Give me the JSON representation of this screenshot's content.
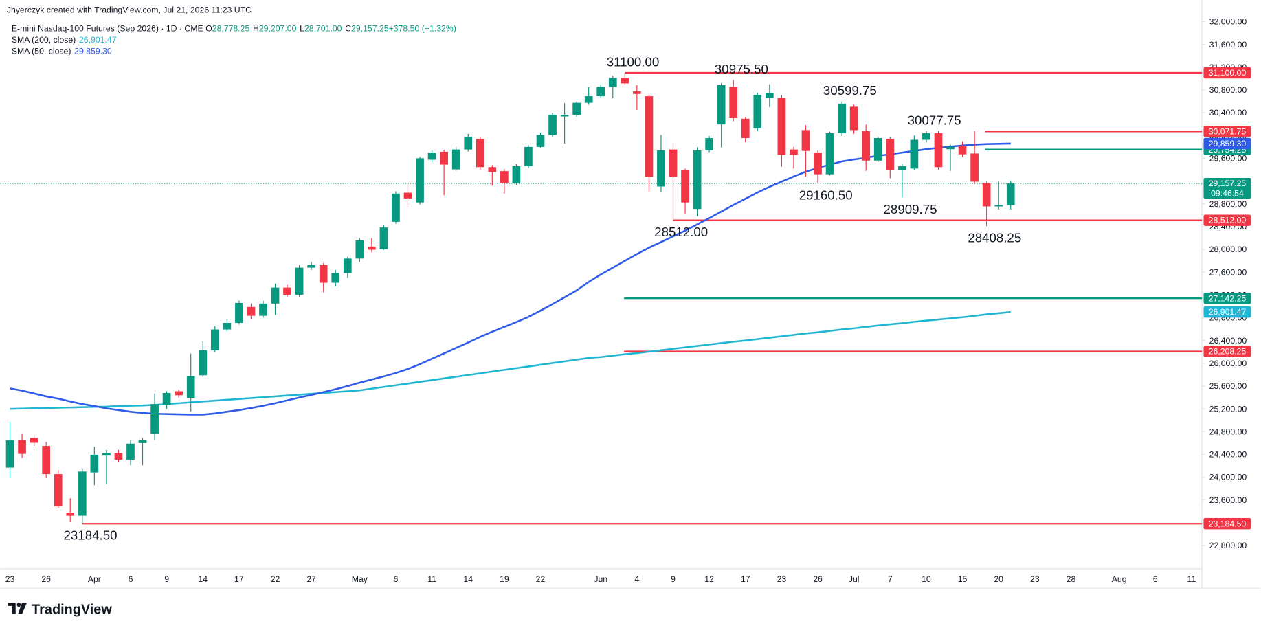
{
  "chart_data": {
    "type": "candlestick",
    "credit": "Jhyerczyk created with TradingView.com, Jul 21, 2026 11:23 UTC",
    "title": "E-mini Nasdaq-100 Futures (Sep 2026) · 1D · CME",
    "ohlc_legend": [
      {
        "key": "O",
        "value": "28,778.25"
      },
      {
        "key": "H",
        "value": "29,207.00"
      },
      {
        "key": "L",
        "value": "28,701.00"
      },
      {
        "key": "C",
        "value": "29,157.25"
      },
      {
        "key": "",
        "value": "+378.50 (+1.32%)"
      }
    ],
    "brand": "TradingView",
    "up_color": "#089981",
    "down_color": "#f23645",
    "categories": [
      "23",
      null,
      null,
      "26",
      null,
      null,
      null,
      "Apr",
      null,
      null,
      "6",
      null,
      null,
      "9",
      null,
      null,
      "14",
      null,
      null,
      "17",
      null,
      null,
      "22",
      null,
      null,
      "27",
      null,
      null,
      null,
      "May",
      null,
      null,
      "6",
      null,
      null,
      "11",
      null,
      null,
      "14",
      null,
      null,
      "19",
      null,
      null,
      "22",
      null,
      null,
      null,
      null,
      "Jun",
      null,
      null,
      "4",
      null,
      null,
      "9",
      null,
      null,
      "12",
      null,
      null,
      "17",
      null,
      null,
      "23",
      null,
      null,
      "26",
      null,
      null,
      "Jul",
      null,
      null,
      "7",
      null,
      null,
      "10",
      null,
      null,
      "15",
      null,
      null,
      "20",
      null,
      null,
      "23",
      null,
      null,
      "28",
      null,
      null,
      null,
      "Aug",
      null,
      null,
      "6",
      null,
      null,
      "11"
    ],
    "open": [
      24170,
      24650,
      24690,
      24550,
      24055,
      23380,
      23325,
      24085,
      24380,
      24425,
      24310,
      24600,
      24760,
      25270,
      25510,
      25395,
      25790,
      26230,
      26595,
      26710,
      26990,
      26835,
      27050,
      27330,
      27205,
      27680,
      27725,
      27415,
      27585,
      27840,
      28050,
      28005,
      28485,
      28995,
      28825,
      29575,
      29715,
      29405,
      29755,
      29940,
      29445,
      29375,
      29165,
      29460,
      29800,
      30010,
      30335,
      30365,
      30575,
      30690,
      30855,
      31010,
      30775,
      30690,
      29105,
      29755,
      29390,
      28710,
      29740,
      30195,
      30855,
      30295,
      30125,
      30660,
      30660,
      29755,
      30095,
      29700,
      29320,
      30040,
      30505,
      30080,
      29560,
      29940,
      29390,
      29420,
      29925,
      30040,
      29760,
      29815,
      29685,
      29165,
      28755,
      28778.25,
      null,
      null,
      null,
      null,
      null,
      null,
      null,
      null,
      null,
      null,
      null,
      null,
      null,
      null,
      null
    ],
    "high": [
      24975,
      24760,
      24750,
      24620,
      24125,
      23630,
      24155,
      24535,
      24480,
      24480,
      24650,
      24690,
      25470,
      25510,
      25540,
      26170,
      26385,
      26650,
      26770,
      27100,
      27050,
      27100,
      27400,
      27380,
      27730,
      27780,
      27760,
      27640,
      27870,
      28200,
      28200,
      28420,
      29020,
      29200,
      29630,
      29740,
      29750,
      29800,
      30030,
      29970,
      29480,
      29410,
      29500,
      29830,
      30050,
      30400,
      30570,
      30600,
      30850,
      30900,
      31050,
      31100,
      30885,
      30720,
      30010,
      29870,
      29420,
      29790,
      29990,
      30920,
      30975.5,
      30320,
      30750,
      30900,
      30710,
      29800,
      30180,
      29740,
      30070,
      30599.75,
      30540,
      30190,
      29980,
      29970,
      29500,
      30000,
      30077.75,
      30080,
      29840,
      29900,
      30080,
      29190,
      29190,
      29207,
      null,
      null,
      null,
      null,
      null,
      null,
      null,
      null,
      null,
      null,
      null,
      null,
      null,
      null,
      null
    ],
    "low": [
      23985,
      24340,
      24550,
      23985,
      23465,
      23210,
      23184.5,
      23860,
      23875,
      24270,
      24210,
      24210,
      24650,
      25200,
      25400,
      25155,
      25760,
      26200,
      26560,
      26680,
      26780,
      26800,
      26850,
      27170,
      27170,
      27640,
      27250,
      27350,
      27500,
      27780,
      27950,
      27990,
      28450,
      28740,
      28790,
      29530,
      28950,
      29380,
      29720,
      29400,
      29120,
      28980,
      29130,
      29430,
      29780,
      29980,
      29860,
      30330,
      30540,
      30660,
      30660,
      30880,
      30450,
      29010,
      29000,
      28512,
      28620,
      28580,
      29710,
      29790,
      30250,
      29880,
      30080,
      30500,
      29450,
      29420,
      29280,
      29160.5,
      29300,
      29990,
      30030,
      29380,
      29530,
      29250,
      28909.75,
      29390,
      29880,
      29400,
      29380,
      29620,
      29150,
      28408.25,
      28700,
      28701,
      null,
      null,
      null,
      null,
      null,
      null,
      null,
      null,
      null,
      null,
      null,
      null,
      null,
      null,
      null
    ],
    "close": [
      24650,
      24410,
      24605,
      24055,
      23490,
      23325,
      24100,
      24395,
      24425,
      24310,
      24590,
      24650,
      25285,
      25480,
      25440,
      25775,
      26230,
      26595,
      26710,
      27060,
      26835,
      27050,
      27330,
      27205,
      27680,
      27725,
      27415,
      27585,
      27840,
      28160,
      27995,
      28385,
      28980,
      28895,
      29600,
      29700,
      29490,
      29755,
      29980,
      29445,
      29360,
      29165,
      29460,
      29800,
      30010,
      30365,
      30365,
      30575,
      30690,
      30855,
      31010,
      30915,
      30730,
      29275,
      29740,
      29275,
      28825,
      29740,
      29955,
      30885,
      30305,
      29955,
      30715,
      30745,
      29660,
      29660,
      29730,
      29320,
      30040,
      30560,
      30095,
      29560,
      29955,
      29390,
      29460,
      29925,
      30040,
      29445,
      29800,
      29670,
      29190,
      28755,
      28780,
      29157.25,
      null,
      null,
      null,
      null,
      null,
      null,
      null,
      null,
      null,
      null,
      null,
      null,
      null,
      null,
      null
    ],
    "series": [
      {
        "name": "SMA (200, close)",
        "color": "#1fb6d4",
        "value_label": "26,901.47",
        "values": [
          25200,
          25205,
          25210,
          25215,
          25220,
          25225,
          25230,
          25235,
          25240,
          25250,
          25255,
          25260,
          25270,
          25285,
          25300,
          25315,
          25330,
          25345,
          25360,
          25375,
          25390,
          25405,
          25420,
          25435,
          25450,
          25465,
          25480,
          25495,
          25510,
          25525,
          25555,
          25585,
          25615,
          25645,
          25675,
          25705,
          25735,
          25765,
          25795,
          25825,
          25855,
          25885,
          25915,
          25945,
          25975,
          26005,
          26035,
          26065,
          26095,
          26110,
          26135,
          26160,
          26180,
          26205,
          26230,
          26255,
          26280,
          26305,
          26330,
          26355,
          26380,
          26400,
          26425,
          26450,
          26475,
          26500,
          26525,
          26545,
          26570,
          26595,
          26615,
          26640,
          26665,
          26685,
          26705,
          26730,
          26750,
          26770,
          26790,
          26810,
          26835,
          26860,
          26880,
          26901.47,
          null,
          null,
          null,
          null,
          null,
          null,
          null,
          null,
          null,
          null,
          null,
          null,
          null,
          null,
          null
        ]
      },
      {
        "name": "SMA (50, close)",
        "color": "#2e5be8",
        "value_label": "29,859.30",
        "values": [
          25560,
          25520,
          25470,
          25420,
          25380,
          25330,
          25285,
          25250,
          25210,
          25180,
          25150,
          25130,
          25115,
          25110,
          25105,
          25100,
          25100,
          25120,
          25150,
          25180,
          25215,
          25255,
          25300,
          25350,
          25400,
          25445,
          25495,
          25545,
          25600,
          25660,
          25715,
          25770,
          25830,
          25900,
          25985,
          26080,
          26175,
          26270,
          26365,
          26465,
          26555,
          26640,
          26725,
          26815,
          26925,
          27040,
          27160,
          27280,
          27430,
          27560,
          27680,
          27800,
          27920,
          28030,
          28130,
          28230,
          28330,
          28440,
          28550,
          28665,
          28780,
          28890,
          29000,
          29100,
          29190,
          29280,
          29365,
          29430,
          29490,
          29545,
          29580,
          29610,
          29645,
          29670,
          29700,
          29730,
          29760,
          29785,
          29805,
          29825,
          29840,
          29850,
          29855,
          29859.3,
          null,
          null,
          null,
          null,
          null,
          null,
          null,
          null,
          null,
          null,
          null,
          null,
          null,
          null,
          null
        ]
      }
    ],
    "last_price": 29157.25,
    "last_price_label": "29,157.25",
    "countdown": "09:46:54",
    "levels": [
      {
        "value": 31100,
        "label": "31,100.00",
        "color": "#f23645"
      },
      {
        "value": 30071.75,
        "label": "30,071.75",
        "color": "#f23645"
      },
      {
        "value": 29754.25,
        "label": "29,754.25",
        "color": "#089981"
      },
      {
        "value": 28512,
        "label": "28,512.00",
        "color": "#f23645"
      },
      {
        "value": 27142.25,
        "label": "27,142.25",
        "color": "#089981"
      },
      {
        "value": 26208.25,
        "label": "26,208.25",
        "color": "#f23645"
      },
      {
        "value": 23184.5,
        "label": "23,184.50",
        "color": "#f23645"
      }
    ],
    "annotations": [
      {
        "text": "31100.00",
        "value": 31100
      },
      {
        "text": "30975.50",
        "value": 30975.5
      },
      {
        "text": "30599.75",
        "value": 30599.75
      },
      {
        "text": "30077.75",
        "value": 30077.75
      },
      {
        "text": "29160.50",
        "value": 29160.5
      },
      {
        "text": "28909.75",
        "value": 28909.75
      },
      {
        "text": "28512.00",
        "value": 28512
      },
      {
        "text": "28408.25",
        "value": 28408.25
      },
      {
        "text": "23184.50",
        "value": 23184.5
      }
    ],
    "ylim": [
      22390,
      32380
    ],
    "yticks": [
      {
        "value": 32000,
        "label": "32,000.00"
      },
      {
        "value": 31600,
        "label": "31,600.00"
      },
      {
        "value": 31200,
        "label": "31,200.00"
      },
      {
        "value": 30800,
        "label": "30,800.00"
      },
      {
        "value": 30400,
        "label": "30,400.00"
      },
      {
        "value": 30000,
        "label": "30,000.00"
      },
      {
        "value": 29600,
        "label": "29,600.00"
      },
      {
        "value": 29200,
        "label": "29,200.00"
      },
      {
        "value": 28800,
        "label": "28,800.00"
      },
      {
        "value": 28400,
        "label": "28,400.00"
      },
      {
        "value": 28000,
        "label": "28,000.00"
      },
      {
        "value": 27600,
        "label": "27,600.00"
      },
      {
        "value": 27200,
        "label": "27,200.00"
      },
      {
        "value": 26800,
        "label": "26,800.00"
      },
      {
        "value": 26400,
        "label": "26,400.00"
      },
      {
        "value": 26000,
        "label": "26,000.00"
      },
      {
        "value": 25600,
        "label": "25,600.00"
      },
      {
        "value": 25200,
        "label": "25,200.00"
      },
      {
        "value": 24800,
        "label": "24,800.00"
      },
      {
        "value": 24400,
        "label": "24,400.00"
      },
      {
        "value": 24000,
        "label": "24,000.00"
      },
      {
        "value": 23600,
        "label": "23,600.00"
      },
      {
        "value": 23200,
        "label": "23,200.00"
      },
      {
        "value": 22800,
        "label": "22,800.00"
      }
    ],
    "grid": false
  }
}
